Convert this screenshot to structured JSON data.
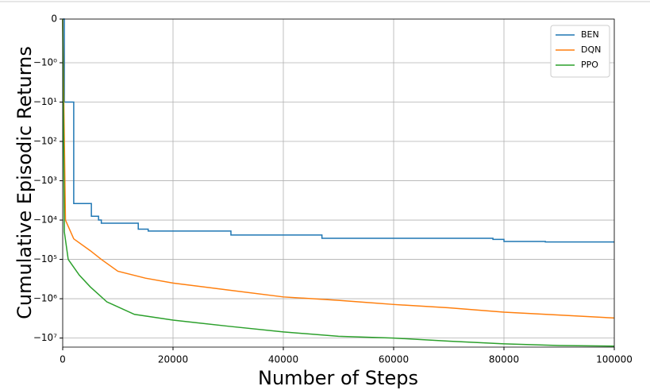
{
  "chart_data": {
    "type": "line",
    "xlabel": "Number of Steps",
    "ylabel": "Cumulative Episodic Returns",
    "xlim": [
      0,
      100000
    ],
    "xticks": [
      0,
      20000,
      40000,
      60000,
      80000,
      100000
    ],
    "ylim": [
      -17000000,
      0
    ],
    "yscale": "symlog",
    "linthresh": 1,
    "yticks": [
      0,
      {
        "value": -1,
        "label": "−10⁰"
      },
      {
        "value": -10,
        "label": "−10¹"
      },
      {
        "value": -100,
        "label": "−10²"
      },
      {
        "value": -1000,
        "label": "−10³"
      },
      {
        "value": -10000,
        "label": "−10⁴"
      },
      {
        "value": -100000,
        "label": "−10⁵"
      },
      {
        "value": -1000000,
        "label": "−10⁶"
      },
      {
        "value": -10000000,
        "label": "−10⁷"
      }
    ],
    "grid": true,
    "legend": "upper right",
    "series": [
      {
        "name": "BEN",
        "color": "#1f77b4",
        "drawstyle": "steps-post",
        "x": [
          0,
          300,
          2000,
          5200,
          6500,
          7000,
          13700,
          15500,
          30500,
          47000,
          78000,
          80000,
          87500,
          100000
        ],
        "values": [
          0,
          -10,
          -3800,
          -8000,
          -10000,
          -12000,
          -17000,
          -19000,
          -24000,
          -29000,
          -31000,
          -35000,
          -36000,
          -36000
        ]
      },
      {
        "name": "DQN",
        "color": "#ff7f0e",
        "drawstyle": "default",
        "x": [
          0,
          500,
          2000,
          5000,
          7000,
          10000,
          15000,
          20000,
          30000,
          40000,
          50000,
          60000,
          70000,
          80000,
          90000,
          100000
        ],
        "values": [
          0,
          -10000,
          -30000,
          -60000,
          -100000,
          -200000,
          -300000,
          -400000,
          -600000,
          -900000,
          -1100000,
          -1400000,
          -1700000,
          -2200000,
          -2600000,
          -3100000
        ]
      },
      {
        "name": "PPO",
        "color": "#2ca02c",
        "drawstyle": "default",
        "x": [
          0,
          300,
          1000,
          3000,
          5000,
          8000,
          13000,
          20000,
          30000,
          40000,
          50000,
          60000,
          70000,
          80000,
          90000,
          100000
        ],
        "values": [
          0,
          -20000,
          -100000,
          -250000,
          -500000,
          -1200000,
          -2500000,
          -3500000,
          -5000000,
          -7000000,
          -9000000,
          -10000000,
          -12000000,
          -14000000,
          -15500000,
          -16000000
        ]
      }
    ]
  }
}
